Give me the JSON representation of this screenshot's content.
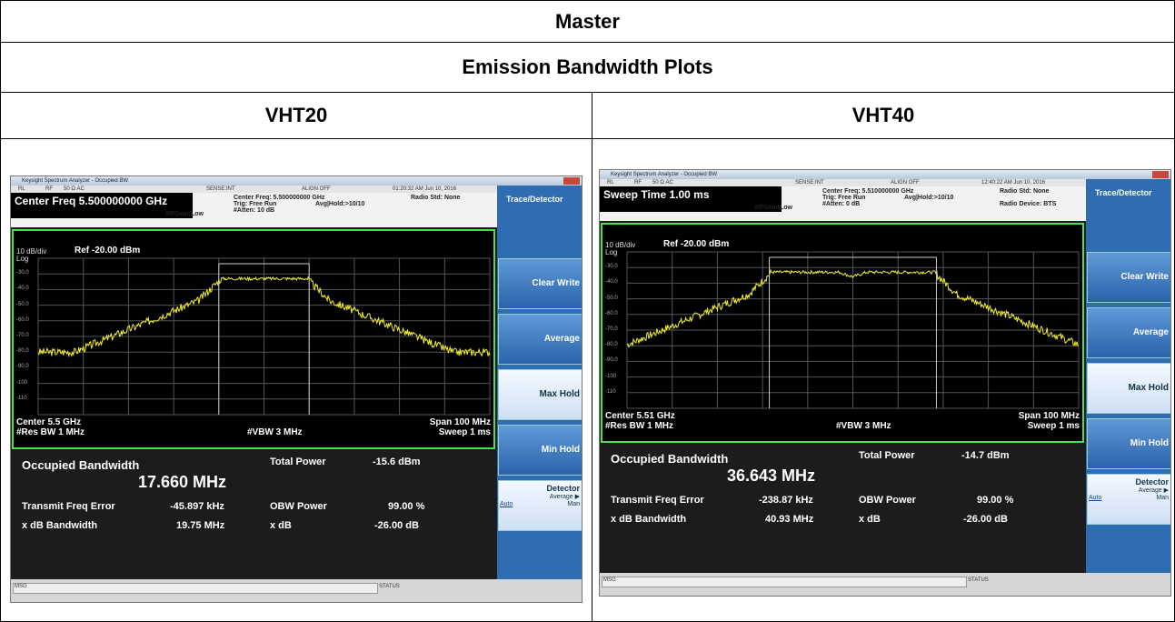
{
  "header": {
    "title": "Master",
    "subtitle": "Emission Bandwidth Plots"
  },
  "columns": [
    {
      "label": "VHT20",
      "screen": {
        "window_title": "Keysight Spectrum Analyzer - Occupied BW",
        "status": [
          "RL",
          "RF",
          "50 Ω  AC",
          "SENSE:INT",
          "ALIGN OFF",
          "01:20:32 AM Jun 10, 2016"
        ],
        "active_field": "Center Freq 5.500000000 GHz",
        "info": {
          "center_freq": "Center Freq: 5.500000000 GHz",
          "trig": "Trig: Free Run",
          "atten": "#Atten: 10 dB",
          "avg": "Avg|Hold:>10/10",
          "gain": "#IFGain:Low",
          "radio_std": "Radio Std: None"
        },
        "plot": {
          "scale": "10 dB/div",
          "ref": "Ref -20.00 dBm",
          "log": "Log",
          "ylabels": [
            "-30.0",
            "-40.0",
            "-50.0",
            "-60.0",
            "-70.0",
            "-80.0",
            "-90.0",
            "-100",
            "-110"
          ],
          "center": "Center 5.5 GHz",
          "res_bw": "#Res BW 1 MHz",
          "vbw": "#VBW 3 MHz",
          "span": "Span 100 MHz",
          "sweep": "Sweep 1 ms"
        },
        "results": {
          "obw_label": "Occupied Bandwidth",
          "obw_value": "17.660 MHz",
          "total_power_label": "Total Power",
          "total_power": "-15.6 dBm",
          "freq_error_label": "Transmit Freq Error",
          "freq_error": "-45.897 kHz",
          "obw_power_label": "OBW Power",
          "obw_power": "99.00 %",
          "xdb_bw_label": "x dB Bandwidth",
          "xdb_bw": "19.75 MHz",
          "xdb_label": "x dB",
          "xdb": "-26.00 dB"
        },
        "menu": {
          "title": "Trace/Detector",
          "buttons": [
            "Clear Write",
            "Average",
            "Max Hold",
            "Min Hold"
          ],
          "detector": "Detector",
          "detector_value": "Average ▶",
          "auto": "Auto",
          "man": "Man"
        },
        "footer": {
          "msg": "MSG",
          "status": "STATUS"
        }
      }
    },
    {
      "label": "VHT40",
      "screen": {
        "window_title": "Keysight Spectrum Analyzer - Occupied BW",
        "status": [
          "RL",
          "RF",
          "50 Ω  AC",
          "SENSE:INT",
          "ALIGN OFF",
          "12:40:22 AM Jun 10, 2016"
        ],
        "active_field": "Sweep Time 1.00 ms",
        "info": {
          "center_freq": "Center Freq: 5.510000000 GHz",
          "trig": "Trig: Free Run",
          "atten": "#Atten: 0 dB",
          "avg": "Avg|Hold:>10/10",
          "gain": "#IFGain:Low",
          "radio_std": "Radio Std: None",
          "radio_device": "Radio Device: BTS"
        },
        "plot": {
          "scale": "10 dB/div",
          "ref": "Ref -20.00 dBm",
          "log": "Log",
          "ylabels": [
            "-30.0",
            "-40.0",
            "-50.0",
            "-60.0",
            "-70.0",
            "-80.0",
            "-90.0",
            "-100",
            "-110"
          ],
          "center": "Center 5.51 GHz",
          "res_bw": "#Res BW 1 MHz",
          "vbw": "#VBW 3 MHz",
          "span": "Span 100 MHz",
          "sweep": "Sweep 1 ms"
        },
        "results": {
          "obw_label": "Occupied Bandwidth",
          "obw_value": "36.643 MHz",
          "total_power_label": "Total Power",
          "total_power": "-14.7 dBm",
          "freq_error_label": "Transmit Freq Error",
          "freq_error": "-238.87 kHz",
          "obw_power_label": "OBW Power",
          "obw_power": "99.00 %",
          "xdb_bw_label": "x dB Bandwidth",
          "xdb_bw": "40.93 MHz",
          "xdb_label": "x dB",
          "xdb": "-26.00 dB"
        },
        "menu": {
          "title": "Trace/Detector",
          "buttons": [
            "Clear Write",
            "Average",
            "Max Hold",
            "Min Hold"
          ],
          "detector": "Detector",
          "detector_value": "Average ▶",
          "auto": "Auto",
          "man": "Man"
        },
        "footer": {
          "msg": "MSG",
          "status": "STATUS"
        }
      }
    }
  ]
}
